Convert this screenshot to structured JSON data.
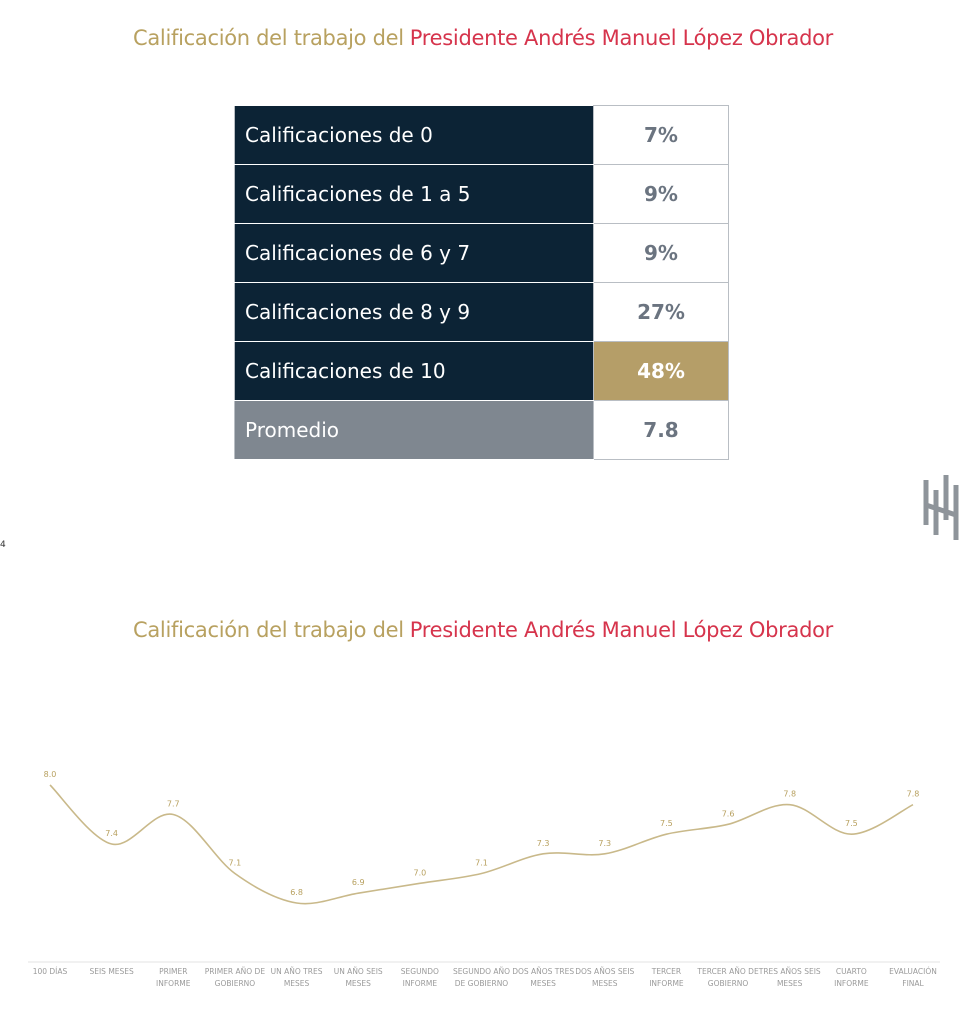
{
  "slide1": {
    "title": {
      "part1": "Calificación del trabajo del",
      "part2": "Presidente Andrés Manuel López Obrador"
    },
    "table": {
      "rows": [
        [
          "Calificaciones de 0",
          "7%"
        ],
        [
          "Calificaciones de 1 a 5",
          "9%"
        ],
        [
          "Calificaciones de 6 y 7",
          "9%"
        ],
        [
          "Calificaciones de 8 y 9",
          "27%"
        ],
        [
          "Calificaciones de 10",
          "48%"
        ],
        [
          "Promedio",
          "7.8"
        ]
      ]
    },
    "page_number": "4"
  },
  "chart_data": {
    "type": "line",
    "title_part1": "Calificación del trabajo del",
    "title_part2": "Presidente Andrés Manuel López Obrador",
    "categories": [
      "100 DÍAS",
      "SEIS MESES",
      "PRIMER INFORME",
      "PRIMER AÑO DE GOBIERNO",
      "UN AÑO TRES MESES",
      "UN AÑO SEIS MESES",
      "SEGUNDO INFORME",
      "SEGUNDO AÑO DE GOBIERNO",
      "DOS AÑOS TRES MESES",
      "DOS AÑOS SEIS MESES",
      "TERCER INFORME",
      "TERCER AÑO DE GOBIERNO",
      "TRES AÑOS SEIS MESES",
      "CUARTO INFORME",
      "EVALUACIÓN FINAL"
    ],
    "values": [
      8.0,
      7.4,
      7.7,
      7.1,
      6.8,
      6.9,
      7.0,
      7.1,
      7.3,
      7.3,
      7.5,
      7.6,
      7.8,
      7.5,
      7.8
    ],
    "value_labels": [
      "8.0",
      "7.4",
      "7.7",
      "7.1",
      "6.8",
      "6.9",
      "7.0",
      "7.1",
      "7.3",
      "7.3",
      "7.5",
      "7.6",
      "7.8",
      "7.5",
      "7.8"
    ],
    "color": "#c9b98a"
  }
}
